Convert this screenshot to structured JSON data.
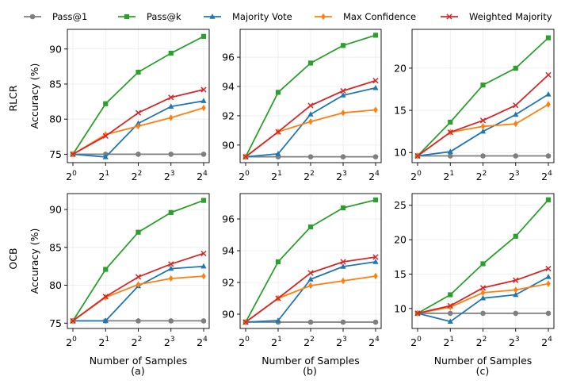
{
  "legend": [
    {
      "name": "Pass@1",
      "color": "#7f7f7f",
      "marker": "circle"
    },
    {
      "name": "Pass@k",
      "color": "#2ca02c",
      "marker": "square"
    },
    {
      "name": "Majority Vote",
      "color": "#1f77b4",
      "marker": "triangle"
    },
    {
      "name": "Max Confidence",
      "color": "#ff7f0e",
      "marker": "diamond"
    },
    {
      "name": "Weighted Majority",
      "color": "#d62728",
      "marker": "x"
    }
  ],
  "row_labels": [
    "RLCR",
    "OCB"
  ],
  "column_labels": [
    "(a)",
    "(b)",
    "(c)"
  ],
  "axis_text": {
    "ylabel": "Accuracy (%)",
    "xlabel": "Number of Samples",
    "xtick_base": "2",
    "xtick_exponents": [
      "0",
      "1",
      "2",
      "3",
      "4"
    ]
  },
  "chart_data": [
    {
      "type": "line",
      "row": "RLCR",
      "column": "(a)",
      "x": [
        1,
        2,
        4,
        8,
        16
      ],
      "ylim": [
        73.8,
        92.8
      ],
      "yticks": [
        75,
        80,
        85,
        90
      ],
      "xlabel": "",
      "ylabel": "Accuracy (%)",
      "series": [
        {
          "name": "Pass@1",
          "values": [
            75.0,
            75.0,
            75.0,
            75.0,
            75.0
          ]
        },
        {
          "name": "Pass@k",
          "values": [
            75.0,
            82.2,
            86.7,
            89.4,
            91.8
          ]
        },
        {
          "name": "Majority Vote",
          "values": [
            75.0,
            74.6,
            79.4,
            81.8,
            82.6
          ]
        },
        {
          "name": "Max Confidence",
          "values": [
            75.0,
            77.8,
            79.0,
            80.2,
            81.6
          ]
        },
        {
          "name": "Weighted Majority",
          "values": [
            75.0,
            77.6,
            80.9,
            83.1,
            84.2
          ]
        }
      ]
    },
    {
      "type": "line",
      "row": "RLCR",
      "column": "(b)",
      "x": [
        1,
        2,
        4,
        8,
        16
      ],
      "ylim": [
        88.8,
        97.9
      ],
      "yticks": [
        90,
        92,
        94,
        96
      ],
      "xlabel": "",
      "ylabel": "",
      "series": [
        {
          "name": "Pass@1",
          "values": [
            89.2,
            89.2,
            89.2,
            89.2,
            89.2
          ]
        },
        {
          "name": "Pass@k",
          "values": [
            89.2,
            93.6,
            95.6,
            96.8,
            97.5
          ]
        },
        {
          "name": "Majority Vote",
          "values": [
            89.2,
            89.4,
            92.1,
            93.4,
            93.9
          ]
        },
        {
          "name": "Max Confidence",
          "values": [
            89.2,
            90.9,
            91.6,
            92.2,
            92.4
          ]
        },
        {
          "name": "Weighted Majority",
          "values": [
            89.2,
            90.9,
            92.7,
            93.7,
            94.4
          ]
        }
      ]
    },
    {
      "type": "line",
      "row": "RLCR",
      "column": "(c)",
      "x": [
        1,
        2,
        4,
        8,
        16
      ],
      "ylim": [
        8.8,
        24.6
      ],
      "yticks": [
        10,
        15,
        20
      ],
      "xlabel": "",
      "ylabel": "",
      "series": [
        {
          "name": "Pass@1",
          "values": [
            9.6,
            9.6,
            9.6,
            9.6,
            9.6
          ]
        },
        {
          "name": "Pass@k",
          "values": [
            9.6,
            13.6,
            18.0,
            20.0,
            23.6
          ]
        },
        {
          "name": "Majority Vote",
          "values": [
            9.6,
            10.1,
            12.5,
            14.5,
            16.9
          ]
        },
        {
          "name": "Max Confidence",
          "values": [
            9.6,
            12.4,
            13.1,
            13.4,
            15.7
          ]
        },
        {
          "name": "Weighted Majority",
          "values": [
            9.6,
            12.4,
            13.8,
            15.6,
            19.2
          ]
        }
      ]
    },
    {
      "type": "line",
      "row": "OCB",
      "column": "(a)",
      "x": [
        1,
        2,
        4,
        8,
        16
      ],
      "ylim": [
        74.3,
        92.1
      ],
      "yticks": [
        75,
        80,
        85,
        90
      ],
      "xlabel": "Number of Samples",
      "ylabel": "Accuracy (%)",
      "series": [
        {
          "name": "Pass@1",
          "values": [
            75.3,
            75.3,
            75.3,
            75.3,
            75.3
          ]
        },
        {
          "name": "Pass@k",
          "values": [
            75.3,
            82.1,
            87.0,
            89.6,
            91.2
          ]
        },
        {
          "name": "Majority Vote",
          "values": [
            75.3,
            75.3,
            79.9,
            82.2,
            82.5
          ]
        },
        {
          "name": "Max Confidence",
          "values": [
            75.3,
            78.4,
            80.1,
            80.9,
            81.2
          ]
        },
        {
          "name": "Weighted Majority",
          "values": [
            75.3,
            78.5,
            81.1,
            82.8,
            84.2
          ]
        }
      ]
    },
    {
      "type": "line",
      "row": "OCB",
      "column": "(b)",
      "x": [
        1,
        2,
        4,
        8,
        16
      ],
      "ylim": [
        89.1,
        97.6
      ],
      "yticks": [
        90,
        92,
        94,
        96
      ],
      "xlabel": "Number of Samples",
      "ylabel": "",
      "series": [
        {
          "name": "Pass@1",
          "values": [
            89.5,
            89.5,
            89.5,
            89.5,
            89.5
          ]
        },
        {
          "name": "Pass@k",
          "values": [
            89.5,
            93.3,
            95.5,
            96.7,
            97.2
          ]
        },
        {
          "name": "Majority Vote",
          "values": [
            89.5,
            89.6,
            92.2,
            93.0,
            93.3
          ]
        },
        {
          "name": "Max Confidence",
          "values": [
            89.5,
            91.0,
            91.8,
            92.1,
            92.4
          ]
        },
        {
          "name": "Weighted Majority",
          "values": [
            89.5,
            91.0,
            92.6,
            93.3,
            93.6
          ]
        }
      ]
    },
    {
      "type": "line",
      "row": "OCB",
      "column": "(c)",
      "x": [
        1,
        2,
        4,
        8,
        16
      ],
      "ylim": [
        7.1,
        26.7
      ],
      "yticks": [
        10,
        15,
        20,
        25
      ],
      "xlabel": "Number of Samples",
      "ylabel": "",
      "series": [
        {
          "name": "Pass@1",
          "values": [
            9.3,
            9.3,
            9.3,
            9.3,
            9.3
          ]
        },
        {
          "name": "Pass@k",
          "values": [
            9.3,
            12.0,
            16.5,
            20.5,
            25.8
          ]
        },
        {
          "name": "Majority Vote",
          "values": [
            9.3,
            8.1,
            11.5,
            12.0,
            14.6
          ]
        },
        {
          "name": "Max Confidence",
          "values": [
            9.3,
            10.2,
            12.3,
            12.7,
            13.6
          ]
        },
        {
          "name": "Weighted Majority",
          "values": [
            9.3,
            10.4,
            13.0,
            14.1,
            15.8
          ]
        }
      ]
    }
  ]
}
